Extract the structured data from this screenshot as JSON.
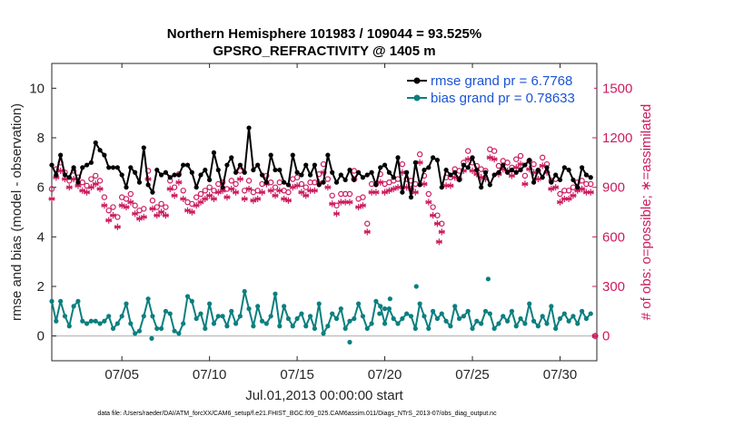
{
  "colors": {
    "rmse": "#000000",
    "bias": "#0b7f7f",
    "obs": "#cc1b5e",
    "zero_line": "#b3b3b3",
    "legend_text": "#1a53d6",
    "axis": "#262626"
  },
  "chart_data": {
    "type": "line",
    "title": "Northern Hemisphere 101983 / 109044 = 93.525%",
    "subtitle": "GPSRO_REFRACTIVITY @ 1405 m",
    "xlabel": "Jul.01,2013 00:00:00 start",
    "ylabel": "rmse and bias (model - observation)",
    "ylabel_right": "# of obs: o=possible; ∗=assimilated",
    "footnote": "data file: /Users/raeder/DAI/ATM_forcXX/CAM6_setup/f.e21.FHIST_BGC.f09_025.CAM6assim.011/Diags_NTrS_2013-07/obs_diag_output.nc",
    "xlim": [
      1.0,
      32.1
    ],
    "ylim": [
      -1,
      11
    ],
    "ylim_right": [
      -150,
      1650
    ],
    "x_ticks": [
      5,
      10,
      15,
      20,
      25,
      30
    ],
    "x_tick_labels": [
      "07/05",
      "07/10",
      "07/15",
      "07/20",
      "07/25",
      "07/30"
    ],
    "y_ticks": [
      0,
      2,
      4,
      6,
      8,
      10
    ],
    "y_tick_labels": [
      "0",
      "2",
      "4",
      "6",
      "8",
      "10"
    ],
    "y_ticks_right": [
      0,
      300,
      600,
      900,
      1200,
      1500
    ],
    "y_tick_labels_right": [
      "0",
      "300",
      "600",
      "900",
      "1200",
      "1500"
    ],
    "legend": [
      "rmse grand pr = 6.7768",
      "bias grand pr = 0.78633"
    ],
    "legend_position": "top-right",
    "series": [
      {
        "name": "rmse",
        "axis": "left",
        "x": [
          1.0,
          1.25,
          1.5,
          1.75,
          2.0,
          2.25,
          2.5,
          2.75,
          3.0,
          3.25,
          3.5,
          3.75,
          4.0,
          4.25,
          4.5,
          4.75,
          5.0,
          5.25,
          5.5,
          5.75,
          6.0,
          6.25,
          6.5,
          6.75,
          7.0,
          7.25,
          7.5,
          7.75,
          8.0,
          8.25,
          8.5,
          8.75,
          9.0,
          9.25,
          9.5,
          9.75,
          10.0,
          10.25,
          10.5,
          10.75,
          11.0,
          11.25,
          11.5,
          11.75,
          12.0,
          12.25,
          12.5,
          12.75,
          13.0,
          13.25,
          13.5,
          13.75,
          14.0,
          14.25,
          14.5,
          14.75,
          15.0,
          15.25,
          15.5,
          15.75,
          16.0,
          16.25,
          16.5,
          16.75,
          17.0,
          17.25,
          17.5,
          17.75,
          18.0,
          18.25,
          18.5,
          18.75,
          19.0,
          19.25,
          19.5,
          19.75,
          20.0,
          20.25,
          20.5,
          20.75,
          21.0,
          21.25,
          21.5,
          21.75,
          22.0,
          22.25,
          22.5,
          22.75,
          23.0,
          23.25,
          23.5,
          23.75,
          24.0,
          24.25,
          24.5,
          24.75,
          25.0,
          25.25,
          25.5,
          25.75,
          26.0,
          26.25,
          26.5,
          26.75,
          27.0,
          27.25,
          27.5,
          27.75,
          28.0,
          28.25,
          28.5,
          28.75,
          29.0,
          29.25,
          29.5,
          29.75,
          30.0,
          30.25,
          30.5,
          30.75,
          31.0,
          31.25,
          31.5,
          31.75
        ],
        "values": [
          6.9,
          6.5,
          7.3,
          6.5,
          6.4,
          6.8,
          6.2,
          6.8,
          6.9,
          7.0,
          7.8,
          7.5,
          7.3,
          6.8,
          6.8,
          6.8,
          6.5,
          6.0,
          6.8,
          6.6,
          6.2,
          7.6,
          6.1,
          5.8,
          6.7,
          6.5,
          6.6,
          6.4,
          6.5,
          6.5,
          6.9,
          6.9,
          6.6,
          6.0,
          6.5,
          6.7,
          6.3,
          7.4,
          6.7,
          6.0,
          6.9,
          7.2,
          6.6,
          6.9,
          6.6,
          8.4,
          6.7,
          6.9,
          6.5,
          6.2,
          7.3,
          6.7,
          6.7,
          6.2,
          6.1,
          7.3,
          6.6,
          6.5,
          6.9,
          6.5,
          6.9,
          6.1,
          6.2,
          7.3,
          6.6,
          6.2,
          6.5,
          6.3,
          6.7,
          6.3,
          6.6,
          6.4,
          6.5,
          6.6,
          6.1,
          6.8,
          6.9,
          6.6,
          6.4,
          7.2,
          5.8,
          6.6,
          5.6,
          7.0,
          6.1,
          6.7,
          6.8,
          7.2,
          7.1,
          6.0,
          6.7,
          6.5,
          6.6,
          6.3,
          6.9,
          6.8,
          7.2,
          6.7,
          6.0,
          6.6,
          6.1,
          6.5,
          6.6,
          6.9,
          6.6,
          6.7,
          6.6,
          6.7,
          6.9,
          7.1,
          6.2,
          6.7,
          6.4,
          6.8,
          6.2,
          6.5,
          6.3,
          6.8,
          6.7,
          6.3,
          6.0,
          6.8,
          6.5,
          6.4
        ]
      },
      {
        "name": "bias",
        "axis": "left",
        "x": [
          1.0,
          1.25,
          1.5,
          1.75,
          2.0,
          2.25,
          2.5,
          2.75,
          3.0,
          3.25,
          3.5,
          3.75,
          4.0,
          4.25,
          4.5,
          4.75,
          5.0,
          5.25,
          5.5,
          5.75,
          6.0,
          6.25,
          6.5,
          6.75,
          7.0,
          7.25,
          7.5,
          7.75,
          8.0,
          8.25,
          8.5,
          8.75,
          9.0,
          9.25,
          9.5,
          9.75,
          10.0,
          10.25,
          10.5,
          10.75,
          11.0,
          11.25,
          11.5,
          11.75,
          12.0,
          12.25,
          12.5,
          12.75,
          13.0,
          13.25,
          13.5,
          13.75,
          14.0,
          14.25,
          14.5,
          14.75,
          15.0,
          15.25,
          15.5,
          15.75,
          16.0,
          16.25,
          16.5,
          16.75,
          17.0,
          17.25,
          17.5,
          17.75,
          18.0,
          18.25,
          18.5,
          18.75,
          19.0,
          19.25,
          19.5,
          19.75,
          20.0,
          20.25,
          20.5,
          20.75,
          21.0,
          21.25,
          21.5,
          21.75,
          22.0,
          22.25,
          22.5,
          22.75,
          23.0,
          23.25,
          23.5,
          23.75,
          24.0,
          24.25,
          24.5,
          24.75,
          25.0,
          25.25,
          25.5,
          25.75,
          26.0,
          26.25,
          26.5,
          26.75,
          27.0,
          27.25,
          27.5,
          27.75,
          28.0,
          28.25,
          28.5,
          28.75,
          29.0,
          29.25,
          29.5,
          29.75,
          30.0,
          30.25,
          30.5,
          30.75,
          31.0,
          31.25,
          31.5,
          31.75
        ],
        "values": [
          1.4,
          0.6,
          1.4,
          0.8,
          0.4,
          1.2,
          1.4,
          0.6,
          0.5,
          0.6,
          0.6,
          0.5,
          0.6,
          0.8,
          0.3,
          0.5,
          0.8,
          1.3,
          0.5,
          0.1,
          0.2,
          0.8,
          1.5,
          0.8,
          0.3,
          0.3,
          1.0,
          0.9,
          0.2,
          0.1,
          0.5,
          1.6,
          1.4,
          0.7,
          0.9,
          0.3,
          1.3,
          0.5,
          0.8,
          0.8,
          0.4,
          1.0,
          0.5,
          0.8,
          1.8,
          1.1,
          0.4,
          1.2,
          0.6,
          0.5,
          0.8,
          1.7,
          0.4,
          1.2,
          0.7,
          0.4,
          0.7,
          0.9,
          0.4,
          0.8,
          0.3,
          1.3,
          0.1,
          0.4,
          0.9,
          0.7,
          1.1,
          0.3,
          0.6,
          0.7,
          1.3,
          0.8,
          0.3,
          0.5,
          1.4,
          1.2,
          0.5,
          1.1,
          0.7,
          0.5,
          0.7,
          0.9,
          0.8,
          0.3,
          1.3,
          0.8,
          0.3,
          1.0,
          0.7,
          0.9,
          0.6,
          0.4,
          1.2,
          0.7,
          0.8,
          1.0,
          0.3,
          0.6,
          0.5,
          1.0,
          0.9,
          0.3,
          0.5,
          0.8,
          0.6,
          1.0,
          0.4,
          0.7,
          0.5,
          1.3,
          0.6,
          0.4,
          0.8,
          0.5,
          1.2,
          0.3,
          0.7,
          0.9,
          0.6,
          0.8,
          0.5,
          1.0,
          0.7,
          0.9
        ],
        "extra_points": [
          {
            "x": 6.7,
            "y": -0.1
          },
          {
            "x": 18.0,
            "y": -0.25
          },
          {
            "x": 19.7,
            "y": 0.9
          },
          {
            "x": 20.0,
            "y": 1.1
          },
          {
            "x": 20.3,
            "y": 1.5
          },
          {
            "x": 21.8,
            "y": 2.0
          },
          {
            "x": 25.9,
            "y": 2.3
          }
        ]
      },
      {
        "name": "obs_possible",
        "axis": "right",
        "marker": "circle",
        "x": [
          1.0,
          1.25,
          1.5,
          1.75,
          2.0,
          2.25,
          2.5,
          2.75,
          3.0,
          3.25,
          3.5,
          3.75,
          4.0,
          4.25,
          4.5,
          4.75,
          5.0,
          5.25,
          5.5,
          5.75,
          6.0,
          6.25,
          6.5,
          6.75,
          7.0,
          7.25,
          7.5,
          7.75,
          8.0,
          8.25,
          8.5,
          8.75,
          9.0,
          9.25,
          9.5,
          9.75,
          10.0,
          10.25,
          10.5,
          10.75,
          11.0,
          11.25,
          11.5,
          11.75,
          12.0,
          12.25,
          12.5,
          12.75,
          13.0,
          13.25,
          13.5,
          13.75,
          14.0,
          14.25,
          14.5,
          14.75,
          15.0,
          15.25,
          15.5,
          15.75,
          16.0,
          16.25,
          16.5,
          16.75,
          17.0,
          17.25,
          17.5,
          17.75,
          18.0,
          18.25,
          18.5,
          18.75,
          19.0,
          19.25,
          19.5,
          19.75,
          20.0,
          20.25,
          20.5,
          20.75,
          21.0,
          21.25,
          21.5,
          21.75,
          22.0,
          22.25,
          22.5,
          22.75,
          23.0,
          23.25,
          23.5,
          23.75,
          24.0,
          24.25,
          24.5,
          24.75,
          25.0,
          25.25,
          25.5,
          25.75,
          26.0,
          26.25,
          26.5,
          26.75,
          27.0,
          27.25,
          27.5,
          27.75,
          28.0,
          28.25,
          28.5,
          28.75,
          29.0,
          29.25,
          29.5,
          29.75,
          30.0,
          30.25,
          30.5,
          30.75,
          31.0,
          31.25,
          31.5,
          31.75
        ],
        "values": [
          890,
          1010,
          1050,
          990,
          940,
          1000,
          960,
          930,
          910,
          950,
          970,
          940,
          840,
          760,
          780,
          720,
          840,
          830,
          860,
          790,
          760,
          770,
          1000,
          820,
          780,
          800,
          780,
          940,
          900,
          980,
          880,
          810,
          800,
          840,
          860,
          880,
          900,
          880,
          920,
          930,
          890,
          940,
          920,
          1000,
          880,
          940,
          870,
          880,
          920,
          970,
          930,
          900,
          930,
          880,
          870,
          950,
          960,
          920,
          900,
          930,
          930,
          980,
          1040,
          950,
          850,
          790,
          860,
          860,
          860,
          1000,
          830,
          840,
          680,
          920,
          920,
          980,
          920,
          930,
          940,
          950,
          1040,
          950,
          940,
          920,
          1100,
          970,
          860,
          780,
          730,
          680,
          960,
          960,
          1010,
          1000,
          1050,
          1120,
          1050,
          1030,
          1010,
          1000,
          1130,
          1120,
          1030,
          1060,
          1050,
          1020,
          1070,
          1090,
          970,
          1060,
          1040,
          1000,
          1080,
          1040,
          940,
          950,
          860,
          880,
          880,
          900,
          930,
          940,
          920,
          920
        ],
        "extra_points": [
          {
            "x": 32.0,
            "y": 0
          }
        ]
      },
      {
        "name": "obs_assimilated",
        "axis": "right",
        "marker": "star",
        "x": [
          1.0,
          1.25,
          1.5,
          1.75,
          2.0,
          2.25,
          2.5,
          2.75,
          3.0,
          3.25,
          3.5,
          3.75,
          4.0,
          4.25,
          4.5,
          4.75,
          5.0,
          5.25,
          5.5,
          5.75,
          6.0,
          6.25,
          6.5,
          6.75,
          7.0,
          7.25,
          7.5,
          7.75,
          8.0,
          8.25,
          8.5,
          8.75,
          9.0,
          9.25,
          9.5,
          9.75,
          10.0,
          10.25,
          10.5,
          10.75,
          11.0,
          11.25,
          11.5,
          11.75,
          12.0,
          12.25,
          12.5,
          12.75,
          13.0,
          13.25,
          13.5,
          13.75,
          14.0,
          14.25,
          14.5,
          14.75,
          15.0,
          15.25,
          15.5,
          15.75,
          16.0,
          16.25,
          16.5,
          16.75,
          17.0,
          17.25,
          17.5,
          17.75,
          18.0,
          18.25,
          18.5,
          18.75,
          19.0,
          19.25,
          19.5,
          19.75,
          20.0,
          20.25,
          20.5,
          20.75,
          21.0,
          21.25,
          21.5,
          21.75,
          22.0,
          22.25,
          22.5,
          22.75,
          23.0,
          23.25,
          23.5,
          23.75,
          24.0,
          24.25,
          24.5,
          24.75,
          25.0,
          25.25,
          25.5,
          25.75,
          26.0,
          26.25,
          26.5,
          26.75,
          27.0,
          27.25,
          27.5,
          27.75,
          28.0,
          28.25,
          28.5,
          28.75,
          29.0,
          29.25,
          29.5,
          29.75,
          30.0,
          30.25,
          30.5,
          30.75,
          31.0,
          31.25,
          31.5,
          31.75
        ],
        "values": [
          830,
          960,
          1000,
          950,
          900,
          950,
          910,
          880,
          870,
          900,
          920,
          890,
          790,
          700,
          730,
          660,
          790,
          780,
          810,
          740,
          710,
          720,
          950,
          770,
          730,
          750,
          730,
          890,
          850,
          930,
          830,
          760,
          750,
          790,
          810,
          830,
          850,
          830,
          870,
          880,
          840,
          890,
          870,
          950,
          830,
          890,
          820,
          830,
          870,
          920,
          880,
          850,
          880,
          830,
          820,
          900,
          910,
          870,
          850,
          880,
          880,
          930,
          990,
          900,
          800,
          740,
          810,
          810,
          810,
          950,
          780,
          790,
          630,
          870,
          870,
          930,
          870,
          880,
          890,
          900,
          990,
          900,
          890,
          870,
          1050,
          920,
          810,
          730,
          680,
          630,
          910,
          910,
          960,
          950,
          1000,
          1070,
          1000,
          980,
          960,
          950,
          1080,
          1070,
          980,
          1010,
          1000,
          970,
          1020,
          1040,
          920,
          1010,
          990,
          950,
          1030,
          990,
          890,
          900,
          810,
          830,
          830,
          850,
          880,
          890,
          870,
          870
        ],
        "extra_points": [
          {
            "x": 23.1,
            "y": 570
          },
          {
            "x": 32.0,
            "y": 0
          }
        ]
      }
    ]
  }
}
